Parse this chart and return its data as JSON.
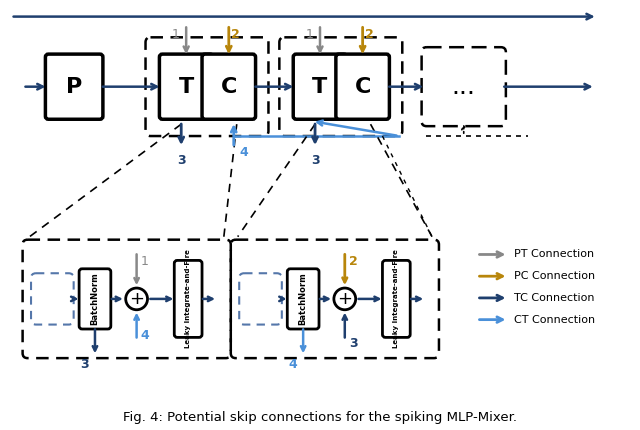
{
  "title": "Fig. 4: Potential skip connections for the spiking MLP-Mixer.",
  "colors": {
    "gray": "#888888",
    "gold": "#B8860B",
    "dark_blue": "#1F3F6E",
    "light_blue": "#4A90D9",
    "box_edge": "#1a1a1a",
    "bg": "#ffffff"
  },
  "legend": [
    {
      "label": "PT Connection",
      "color": "#888888"
    },
    {
      "label": "PC Connection",
      "color": "#B8860B"
    },
    {
      "label": "TC Connection",
      "color": "#1F3F6E"
    },
    {
      "label": "CT Connection",
      "color": "#4A90D9"
    }
  ]
}
